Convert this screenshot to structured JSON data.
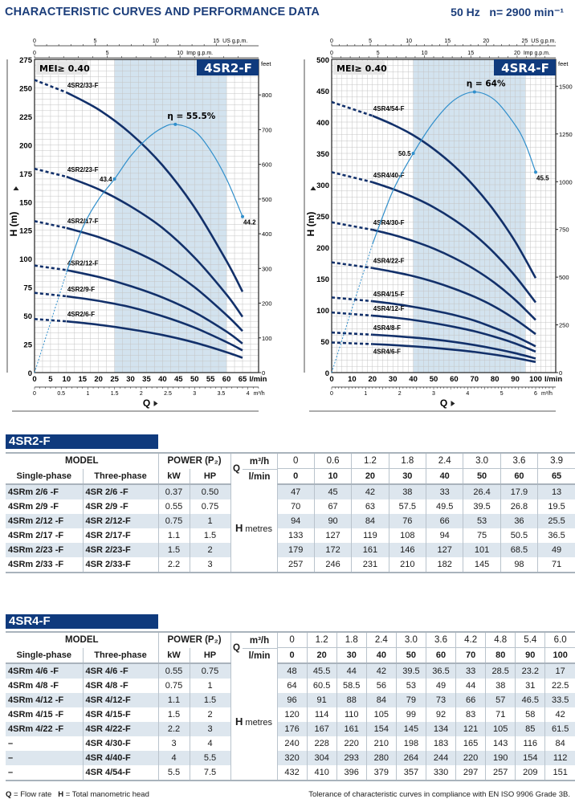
{
  "header": {
    "title": "CHARACTERISTIC CURVES AND PERFORMANCE DATA",
    "frequency": "50 Hz",
    "speed": "n= 2900 min⁻¹"
  },
  "colors": {
    "brand": "#0f3a7d",
    "curve": "#12306a",
    "efficiency": "#2f8ecb",
    "best_range": "#d3e3ef",
    "grid": "#c4c4c4"
  },
  "chart_data": [
    {
      "type": "line",
      "title": "4SR2-F",
      "mei": "MEI≥ 0.40",
      "xlabel": "Q",
      "ylabel": "H (m)",
      "x_unit": "l/min",
      "x_ticks": [
        0,
        5,
        10,
        15,
        20,
        25,
        30,
        35,
        40,
        45,
        50,
        55,
        60,
        65
      ],
      "xlim": [
        0,
        70
      ],
      "y_ticks": [
        0,
        25,
        50,
        75,
        100,
        125,
        150,
        175,
        200,
        225,
        250,
        275
      ],
      "ylim": [
        0,
        275
      ],
      "feet_unit": "feet",
      "feet_ticks": [
        0,
        100,
        200,
        300,
        400,
        500,
        600,
        700,
        800
      ],
      "usgpm_unit": "US g.p.m.",
      "usgpm_ticks": [
        0,
        5,
        10,
        15
      ],
      "impgpm_unit": "Imp g.p.m.",
      "impgpm_ticks": [
        0,
        5,
        10
      ],
      "m3h_unit": "m³/h",
      "m3h_ticks": [
        "0",
        "0.5",
        "1",
        "1.5",
        "2",
        "2.5",
        "3",
        "3.5",
        "4"
      ],
      "best_range": [
        25,
        60
      ],
      "grid": true,
      "dashed_until": 10,
      "q": [
        0,
        10,
        20,
        30,
        40,
        50,
        60,
        65
      ],
      "series": [
        {
          "name": "4SR2/33-F",
          "values": [
            257,
            246,
            231,
            210,
            182,
            145,
            98,
            71
          ]
        },
        {
          "name": "4SR2/23-F",
          "values": [
            179,
            172,
            161,
            146,
            127,
            101,
            68.5,
            49
          ]
        },
        {
          "name": "4SR2/17-F",
          "values": [
            133,
            127,
            119,
            108,
            94,
            75,
            50.5,
            36.5
          ]
        },
        {
          "name": "4SR2/12-F",
          "values": [
            94,
            90,
            84,
            76,
            66,
            53,
            36,
            25.5
          ]
        },
        {
          "name": "4SR2/9-F",
          "values": [
            70,
            67,
            63,
            57.5,
            49.5,
            39.5,
            26.8,
            19.5
          ]
        },
        {
          "name": "4SR2/6-F",
          "values": [
            47,
            45,
            42,
            38,
            33,
            26.4,
            17.9,
            13
          ]
        }
      ],
      "efficiency": {
        "peak_label": "η = 55.5%",
        "start_label": "43.4",
        "end_label": "44.2",
        "curve_q": [
          0,
          10,
          15,
          20,
          25,
          30,
          35,
          40,
          44,
          50,
          55,
          60,
          65
        ],
        "curve_h": [
          0,
          88,
          127,
          152,
          170,
          190,
          205,
          215,
          218,
          212,
          195,
          170,
          137
        ],
        "markers_q": [
          25,
          44,
          65
        ]
      }
    },
    {
      "type": "line",
      "title": "4SR4-F",
      "mei": "MEI≥ 0.40",
      "xlabel": "Q",
      "ylabel": "H (m)",
      "x_unit": "l/min",
      "x_ticks": [
        0,
        10,
        20,
        30,
        40,
        50,
        60,
        70,
        80,
        90,
        100
      ],
      "xlim": [
        0,
        110
      ],
      "y_ticks": [
        0,
        50,
        100,
        150,
        200,
        250,
        300,
        350,
        400,
        450,
        500
      ],
      "ylim": [
        0,
        500
      ],
      "feet_unit": "feet",
      "feet_ticks": [
        0,
        250,
        500,
        750,
        1000,
        1250,
        1500
      ],
      "usgpm_unit": "US g.p.m.",
      "usgpm_ticks": [
        0,
        5,
        10,
        15,
        20,
        25
      ],
      "impgpm_unit": "Imp g.p.m.",
      "impgpm_ticks": [
        0,
        5,
        10,
        15,
        20
      ],
      "m3h_unit": "m³/h",
      "m3h_ticks": [
        "0",
        "1",
        "2",
        "3",
        "4",
        "5",
        "6"
      ],
      "best_range": [
        40,
        95
      ],
      "grid": true,
      "dashed_until": 20,
      "q": [
        0,
        20,
        30,
        40,
        50,
        60,
        70,
        80,
        90,
        100
      ],
      "series": [
        {
          "name": "4SR4/54-F",
          "values": [
            432,
            410,
            396,
            379,
            357,
            330,
            297,
            257,
            209,
            151
          ]
        },
        {
          "name": "4SR4/40-F",
          "values": [
            320,
            304,
            293,
            280,
            264,
            244,
            220,
            190,
            154,
            112
          ]
        },
        {
          "name": "4SR4/30-F",
          "values": [
            240,
            228,
            220,
            210,
            198,
            183,
            165,
            143,
            116,
            84
          ]
        },
        {
          "name": "4SR4/22-F",
          "values": [
            176,
            167,
            161,
            154,
            145,
            134,
            121,
            105,
            85,
            61.5
          ]
        },
        {
          "name": "4SR4/15-F",
          "values": [
            120,
            114,
            110,
            105,
            99,
            92,
            83,
            71,
            58,
            42
          ]
        },
        {
          "name": "4SR4/12-F",
          "values": [
            96,
            91,
            88,
            84,
            79,
            73,
            66,
            57,
            46.5,
            33.5
          ]
        },
        {
          "name": "4SR4/8-F",
          "values": [
            64,
            60.5,
            58.5,
            56,
            53,
            49,
            44,
            38,
            31,
            22.5
          ]
        },
        {
          "name": "4SR4/6-F",
          "values": [
            48,
            45.5,
            44,
            42,
            39.5,
            36.5,
            33,
            28.5,
            23.2,
            17
          ]
        }
      ],
      "efficiency": {
        "peak_label": "η = 64%",
        "start_label": "50.5",
        "end_label": "45.5",
        "curve_q": [
          0,
          20,
          30,
          40,
          50,
          60,
          70,
          80,
          90,
          95,
          100
        ],
        "curve_h": [
          0,
          205,
          290,
          350,
          400,
          435,
          448,
          435,
          395,
          365,
          320
        ],
        "markers_q": [
          40,
          70,
          100
        ]
      }
    }
  ],
  "tables": [
    {
      "title": "4SR2-F",
      "model": "MODEL",
      "single": "Single-phase",
      "three": "Three-phase",
      "power": "POWER (P₂)",
      "kw": "kW",
      "hp": "HP",
      "q": "Q",
      "m3h": "m³/h",
      "lmin": "l/min",
      "h": "H",
      "metres": "metres",
      "q_m3h": [
        "0",
        "0.6",
        "1.2",
        "1.8",
        "2.4",
        "3.0",
        "3.6",
        "3.9"
      ],
      "q_lmin": [
        "0",
        "10",
        "20",
        "30",
        "40",
        "50",
        "60",
        "65"
      ],
      "rows": [
        {
          "single": "4SRm 2/6  -F",
          "three": "4SR 2/6  -F",
          "kw": "0.37",
          "hp": "0.50",
          "h": [
            "47",
            "45",
            "42",
            "38",
            "33",
            "26.4",
            "17.9",
            "13"
          ]
        },
        {
          "single": "4SRm 2/9  -F",
          "three": "4SR 2/9  -F",
          "kw": "0.55",
          "hp": "0.75",
          "h": [
            "70",
            "67",
            "63",
            "57.5",
            "49.5",
            "39.5",
            "26.8",
            "19.5"
          ]
        },
        {
          "single": "4SRm 2/12 -F",
          "three": "4SR 2/12-F",
          "kw": "0.75",
          "hp": "1",
          "h": [
            "94",
            "90",
            "84",
            "76",
            "66",
            "53",
            "36",
            "25.5"
          ]
        },
        {
          "single": "4SRm 2/17 -F",
          "three": "4SR 2/17-F",
          "kw": "1.1",
          "hp": "1.5",
          "h": [
            "133",
            "127",
            "119",
            "108",
            "94",
            "75",
            "50.5",
            "36.5"
          ]
        },
        {
          "single": "4SRm 2/23 -F",
          "three": "4SR 2/23-F",
          "kw": "1.5",
          "hp": "2",
          "h": [
            "179",
            "172",
            "161",
            "146",
            "127",
            "101",
            "68.5",
            "49"
          ]
        },
        {
          "single": "4SRm 2/33 -F",
          "three": "4SR 2/33-F",
          "kw": "2.2",
          "hp": "3",
          "h": [
            "257",
            "246",
            "231",
            "210",
            "182",
            "145",
            "98",
            "71"
          ]
        }
      ]
    },
    {
      "title": "4SR4-F",
      "model": "MODEL",
      "single": "Single-phase",
      "three": "Three-phase",
      "power": "POWER (P₂)",
      "kw": "kW",
      "hp": "HP",
      "q": "Q",
      "m3h": "m³/h",
      "lmin": "l/min",
      "h": "H",
      "metres": "metres",
      "q_m3h": [
        "0",
        "1.2",
        "1.8",
        "2.4",
        "3.0",
        "3.6",
        "4.2",
        "4.8",
        "5.4",
        "6.0"
      ],
      "q_lmin": [
        "0",
        "20",
        "30",
        "40",
        "50",
        "60",
        "70",
        "80",
        "90",
        "100"
      ],
      "rows": [
        {
          "single": "4SRm 4/6  -F",
          "three": "4SR 4/6  -F",
          "kw": "0.55",
          "hp": "0.75",
          "h": [
            "48",
            "45.5",
            "44",
            "42",
            "39.5",
            "36.5",
            "33",
            "28.5",
            "23.2",
            "17"
          ]
        },
        {
          "single": "4SRm 4/8  -F",
          "three": "4SR 4/8  -F",
          "kw": "0.75",
          "hp": "1",
          "h": [
            "64",
            "60.5",
            "58.5",
            "56",
            "53",
            "49",
            "44",
            "38",
            "31",
            "22.5"
          ]
        },
        {
          "single": "4SRm 4/12 -F",
          "three": "4SR 4/12-F",
          "kw": "1.1",
          "hp": "1.5",
          "h": [
            "96",
            "91",
            "88",
            "84",
            "79",
            "73",
            "66",
            "57",
            "46.5",
            "33.5"
          ]
        },
        {
          "single": "4SRm 4/15 -F",
          "three": "4SR 4/15-F",
          "kw": "1.5",
          "hp": "2",
          "h": [
            "120",
            "114",
            "110",
            "105",
            "99",
            "92",
            "83",
            "71",
            "58",
            "42"
          ]
        },
        {
          "single": "4SRm 4/22 -F",
          "three": "4SR 4/22-F",
          "kw": "2.2",
          "hp": "3",
          "h": [
            "176",
            "167",
            "161",
            "154",
            "145",
            "134",
            "121",
            "105",
            "85",
            "61.5"
          ]
        },
        {
          "single": "–",
          "three": "4SR 4/30-F",
          "kw": "3",
          "hp": "4",
          "h": [
            "240",
            "228",
            "220",
            "210",
            "198",
            "183",
            "165",
            "143",
            "116",
            "84"
          ]
        },
        {
          "single": "–",
          "three": "4SR 4/40-F",
          "kw": "4",
          "hp": "5.5",
          "h": [
            "320",
            "304",
            "293",
            "280",
            "264",
            "244",
            "220",
            "190",
            "154",
            "112"
          ]
        },
        {
          "single": "–",
          "three": "4SR 4/54-F",
          "kw": "5.5",
          "hp": "7.5",
          "h": [
            "432",
            "410",
            "396",
            "379",
            "357",
            "330",
            "297",
            "257",
            "209",
            "151"
          ]
        }
      ]
    }
  ],
  "footer": {
    "legend_q": "Q",
    "legend_q_text": " = Flow rate",
    "legend_h": "H",
    "legend_h_text": " = Total manometric head",
    "tolerance": "Tolerance of characteristic curves in compliance with EN ISO 9906 Grade 3B."
  }
}
